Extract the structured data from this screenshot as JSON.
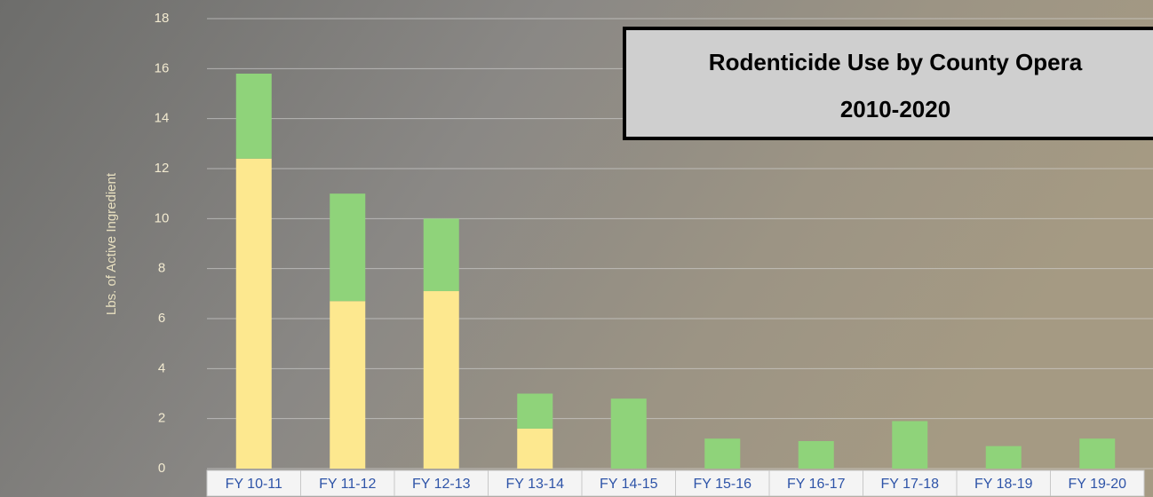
{
  "chart_data": {
    "type": "stacked_bar",
    "title": [
      "Rodenticide Use by County Opera",
      "2010-2020"
    ],
    "y_label": "Lbs. of Active Ingredient",
    "categories": [
      "FY 10-11",
      "FY 11-12",
      "FY 12-13",
      "FY 13-14",
      "FY 14-15",
      "FY 15-16",
      "FY 16-17",
      "FY 17-18",
      "FY 18-19",
      "FY 19-20"
    ],
    "series": [
      {
        "color": "#fde88f",
        "values": [
          12.4,
          6.7,
          7.1,
          1.6,
          0,
          0,
          0,
          0,
          0,
          0
        ]
      },
      {
        "color": "#8fd37a",
        "values": [
          3.4,
          4.3,
          2.9,
          1.4,
          2.8,
          1.2,
          1.1,
          1.9,
          0.9,
          1.2
        ]
      }
    ],
    "ylim": [
      0,
      18
    ],
    "yticks": [
      0,
      2,
      4,
      6,
      8,
      10,
      12,
      14,
      16,
      18
    ],
    "grid": true
  }
}
